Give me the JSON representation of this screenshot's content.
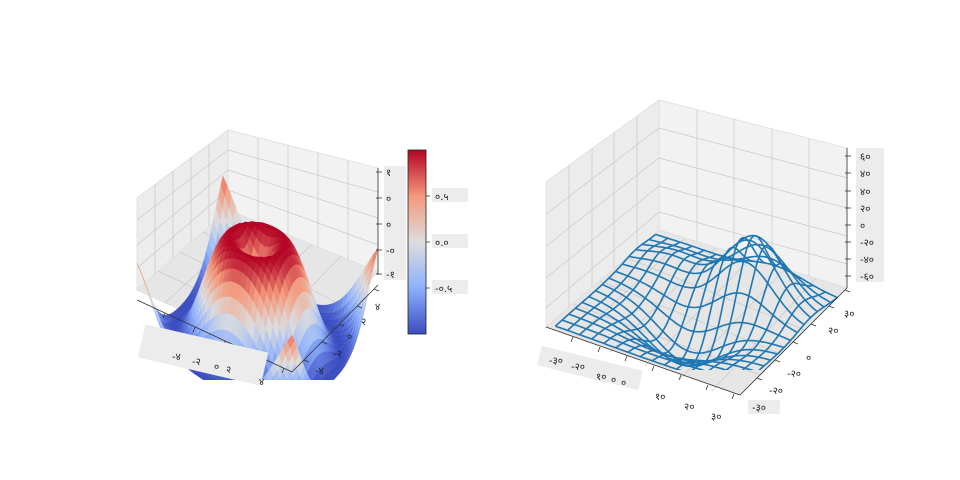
{
  "chart_data": [
    {
      "type": "surface",
      "colormap": "coolwarm",
      "colormap_colors": [
        "#3b4cc0",
        "#8db0fe",
        "#dddddd",
        "#f4987a",
        "#b40426"
      ],
      "x_tick_labels": [
        "-४",
        "-२",
        "०",
        "२",
        "४"
      ],
      "y_tick_labels": [
        "-४",
        "-२",
        "०",
        "२",
        "४"
      ],
      "z_tick_labels": [
        "-१",
        "-०",
        "०",
        "०",
        "१"
      ],
      "colorbar": {
        "range": [
          -1,
          1
        ],
        "tick_values": [
          -0.5,
          0,
          0.5
        ],
        "tick_labels": [
          "-०.५",
          "०.०",
          "०.५"
        ]
      },
      "grid": true
    },
    {
      "type": "wireframe",
      "color": "#1f77b4",
      "x_tick_labels": [
        "-३०",
        "-२०",
        "१०",
        "०",
        "०",
        "१०",
        "२०",
        "३०"
      ],
      "y_tick_labels": [
        "-३०",
        "-२०",
        "-२०",
        "०",
        "२०",
        "३०"
      ],
      "z_tick_labels": [
        "६०",
        "४०",
        "४०",
        "२०",
        "०",
        "-२०",
        "-४०",
        "-६०"
      ],
      "zlim": [
        -65,
        65
      ],
      "grid": true
    }
  ]
}
